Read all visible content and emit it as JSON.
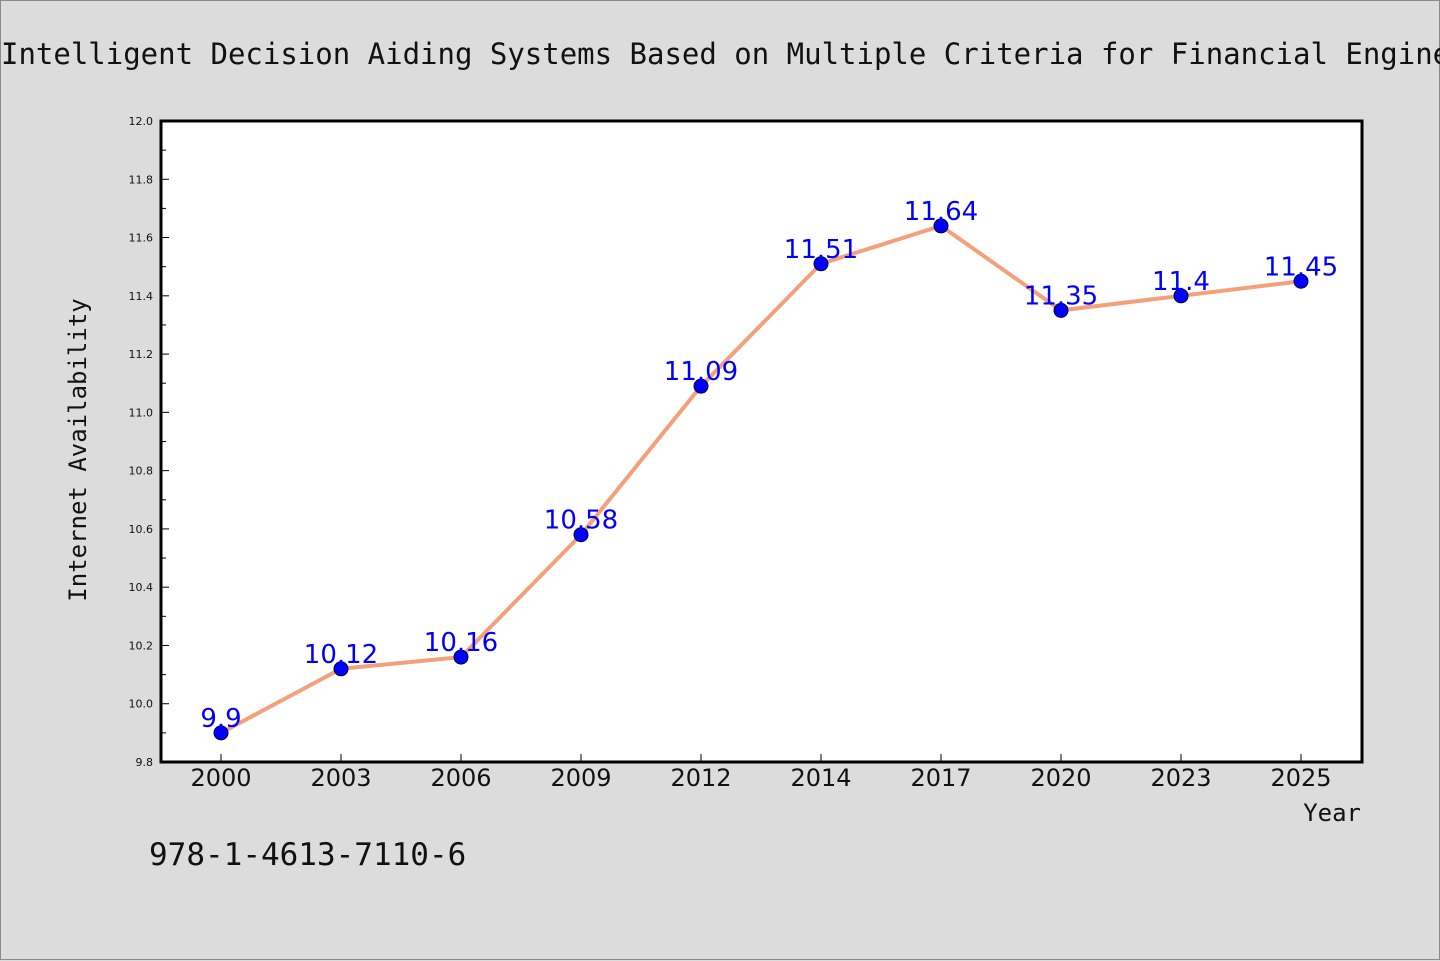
{
  "title": "Intelligent Decision Aiding Systems Based on Multiple Criteria for Financial Engineering",
  "isbn": "978-1-4613-7110-6",
  "colors": {
    "background": "#dcdcdc",
    "plot_background": "#ffffff",
    "line": "#f4a07a",
    "marker": "#0000ff",
    "data_label": "#0000ff"
  },
  "chart_data": {
    "type": "line",
    "title": "Intelligent Decision Aiding Systems Based on Multiple Criteria for Financial Engineering",
    "xlabel": "Year",
    "ylabel": "Internet Availability",
    "categories": [
      "2000",
      "2003",
      "2006",
      "2009",
      "2012",
      "2014",
      "2017",
      "2020",
      "2023",
      "2025"
    ],
    "series": [
      {
        "values": [
          9.9,
          10.12,
          10.16,
          10.58,
          11.09,
          11.51,
          11.64,
          11.35,
          11.4,
          11.45
        ],
        "labels": [
          "9.9",
          "10.12",
          "10.16",
          "10.58",
          "11.09",
          "11.51",
          "11.64",
          "11.35",
          "11.4",
          "11.45"
        ]
      }
    ],
    "ylim": [
      9.8,
      12.0
    ],
    "yticks": [
      "9.8",
      "10.0",
      "10.2",
      "10.4",
      "10.6",
      "10.8",
      "11.0",
      "11.2",
      "11.4",
      "11.6",
      "11.8",
      "12.0"
    ],
    "grid": false,
    "legend": "none"
  }
}
